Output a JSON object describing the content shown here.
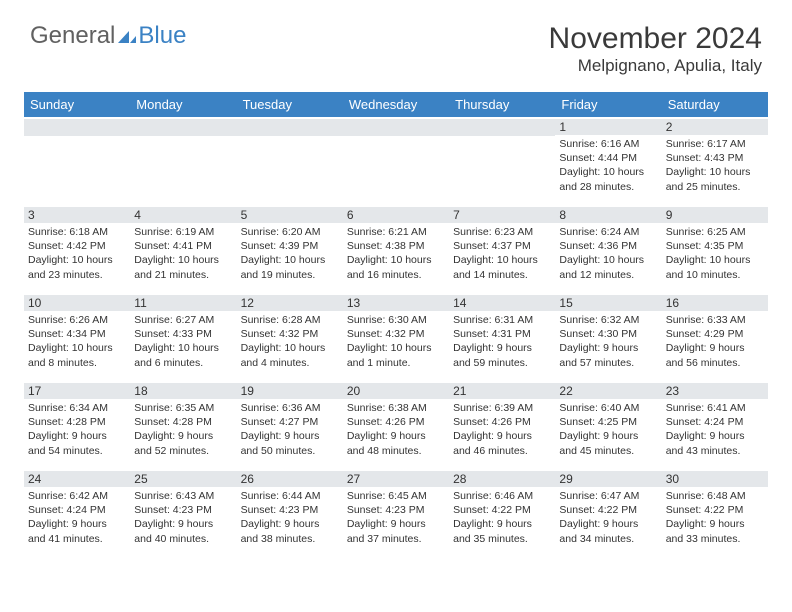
{
  "logo": {
    "text1": "General",
    "text2": "Blue",
    "icon_color": "#3b82c4"
  },
  "title": "November 2024",
  "location": "Melpignano, Apulia, Italy",
  "colors": {
    "header_bg": "#3b82c4",
    "daynum_bg": "#e4e7ea",
    "text": "#333333"
  },
  "day_headers": [
    "Sunday",
    "Monday",
    "Tuesday",
    "Wednesday",
    "Thursday",
    "Friday",
    "Saturday"
  ],
  "weeks": [
    [
      {
        "n": "",
        "sunrise": "",
        "sunset": "",
        "daylight1": "",
        "daylight2": ""
      },
      {
        "n": "",
        "sunrise": "",
        "sunset": "",
        "daylight1": "",
        "daylight2": ""
      },
      {
        "n": "",
        "sunrise": "",
        "sunset": "",
        "daylight1": "",
        "daylight2": ""
      },
      {
        "n": "",
        "sunrise": "",
        "sunset": "",
        "daylight1": "",
        "daylight2": ""
      },
      {
        "n": "",
        "sunrise": "",
        "sunset": "",
        "daylight1": "",
        "daylight2": ""
      },
      {
        "n": "1",
        "sunrise": "Sunrise: 6:16 AM",
        "sunset": "Sunset: 4:44 PM",
        "daylight1": "Daylight: 10 hours",
        "daylight2": "and 28 minutes."
      },
      {
        "n": "2",
        "sunrise": "Sunrise: 6:17 AM",
        "sunset": "Sunset: 4:43 PM",
        "daylight1": "Daylight: 10 hours",
        "daylight2": "and 25 minutes."
      }
    ],
    [
      {
        "n": "3",
        "sunrise": "Sunrise: 6:18 AM",
        "sunset": "Sunset: 4:42 PM",
        "daylight1": "Daylight: 10 hours",
        "daylight2": "and 23 minutes."
      },
      {
        "n": "4",
        "sunrise": "Sunrise: 6:19 AM",
        "sunset": "Sunset: 4:41 PM",
        "daylight1": "Daylight: 10 hours",
        "daylight2": "and 21 minutes."
      },
      {
        "n": "5",
        "sunrise": "Sunrise: 6:20 AM",
        "sunset": "Sunset: 4:39 PM",
        "daylight1": "Daylight: 10 hours",
        "daylight2": "and 19 minutes."
      },
      {
        "n": "6",
        "sunrise": "Sunrise: 6:21 AM",
        "sunset": "Sunset: 4:38 PM",
        "daylight1": "Daylight: 10 hours",
        "daylight2": "and 16 minutes."
      },
      {
        "n": "7",
        "sunrise": "Sunrise: 6:23 AM",
        "sunset": "Sunset: 4:37 PM",
        "daylight1": "Daylight: 10 hours",
        "daylight2": "and 14 minutes."
      },
      {
        "n": "8",
        "sunrise": "Sunrise: 6:24 AM",
        "sunset": "Sunset: 4:36 PM",
        "daylight1": "Daylight: 10 hours",
        "daylight2": "and 12 minutes."
      },
      {
        "n": "9",
        "sunrise": "Sunrise: 6:25 AM",
        "sunset": "Sunset: 4:35 PM",
        "daylight1": "Daylight: 10 hours",
        "daylight2": "and 10 minutes."
      }
    ],
    [
      {
        "n": "10",
        "sunrise": "Sunrise: 6:26 AM",
        "sunset": "Sunset: 4:34 PM",
        "daylight1": "Daylight: 10 hours",
        "daylight2": "and 8 minutes."
      },
      {
        "n": "11",
        "sunrise": "Sunrise: 6:27 AM",
        "sunset": "Sunset: 4:33 PM",
        "daylight1": "Daylight: 10 hours",
        "daylight2": "and 6 minutes."
      },
      {
        "n": "12",
        "sunrise": "Sunrise: 6:28 AM",
        "sunset": "Sunset: 4:32 PM",
        "daylight1": "Daylight: 10 hours",
        "daylight2": "and 4 minutes."
      },
      {
        "n": "13",
        "sunrise": "Sunrise: 6:30 AM",
        "sunset": "Sunset: 4:32 PM",
        "daylight1": "Daylight: 10 hours",
        "daylight2": "and 1 minute."
      },
      {
        "n": "14",
        "sunrise": "Sunrise: 6:31 AM",
        "sunset": "Sunset: 4:31 PM",
        "daylight1": "Daylight: 9 hours",
        "daylight2": "and 59 minutes."
      },
      {
        "n": "15",
        "sunrise": "Sunrise: 6:32 AM",
        "sunset": "Sunset: 4:30 PM",
        "daylight1": "Daylight: 9 hours",
        "daylight2": "and 57 minutes."
      },
      {
        "n": "16",
        "sunrise": "Sunrise: 6:33 AM",
        "sunset": "Sunset: 4:29 PM",
        "daylight1": "Daylight: 9 hours",
        "daylight2": "and 56 minutes."
      }
    ],
    [
      {
        "n": "17",
        "sunrise": "Sunrise: 6:34 AM",
        "sunset": "Sunset: 4:28 PM",
        "daylight1": "Daylight: 9 hours",
        "daylight2": "and 54 minutes."
      },
      {
        "n": "18",
        "sunrise": "Sunrise: 6:35 AM",
        "sunset": "Sunset: 4:28 PM",
        "daylight1": "Daylight: 9 hours",
        "daylight2": "and 52 minutes."
      },
      {
        "n": "19",
        "sunrise": "Sunrise: 6:36 AM",
        "sunset": "Sunset: 4:27 PM",
        "daylight1": "Daylight: 9 hours",
        "daylight2": "and 50 minutes."
      },
      {
        "n": "20",
        "sunrise": "Sunrise: 6:38 AM",
        "sunset": "Sunset: 4:26 PM",
        "daylight1": "Daylight: 9 hours",
        "daylight2": "and 48 minutes."
      },
      {
        "n": "21",
        "sunrise": "Sunrise: 6:39 AM",
        "sunset": "Sunset: 4:26 PM",
        "daylight1": "Daylight: 9 hours",
        "daylight2": "and 46 minutes."
      },
      {
        "n": "22",
        "sunrise": "Sunrise: 6:40 AM",
        "sunset": "Sunset: 4:25 PM",
        "daylight1": "Daylight: 9 hours",
        "daylight2": "and 45 minutes."
      },
      {
        "n": "23",
        "sunrise": "Sunrise: 6:41 AM",
        "sunset": "Sunset: 4:24 PM",
        "daylight1": "Daylight: 9 hours",
        "daylight2": "and 43 minutes."
      }
    ],
    [
      {
        "n": "24",
        "sunrise": "Sunrise: 6:42 AM",
        "sunset": "Sunset: 4:24 PM",
        "daylight1": "Daylight: 9 hours",
        "daylight2": "and 41 minutes."
      },
      {
        "n": "25",
        "sunrise": "Sunrise: 6:43 AM",
        "sunset": "Sunset: 4:23 PM",
        "daylight1": "Daylight: 9 hours",
        "daylight2": "and 40 minutes."
      },
      {
        "n": "26",
        "sunrise": "Sunrise: 6:44 AM",
        "sunset": "Sunset: 4:23 PM",
        "daylight1": "Daylight: 9 hours",
        "daylight2": "and 38 minutes."
      },
      {
        "n": "27",
        "sunrise": "Sunrise: 6:45 AM",
        "sunset": "Sunset: 4:23 PM",
        "daylight1": "Daylight: 9 hours",
        "daylight2": "and 37 minutes."
      },
      {
        "n": "28",
        "sunrise": "Sunrise: 6:46 AM",
        "sunset": "Sunset: 4:22 PM",
        "daylight1": "Daylight: 9 hours",
        "daylight2": "and 35 minutes."
      },
      {
        "n": "29",
        "sunrise": "Sunrise: 6:47 AM",
        "sunset": "Sunset: 4:22 PM",
        "daylight1": "Daylight: 9 hours",
        "daylight2": "and 34 minutes."
      },
      {
        "n": "30",
        "sunrise": "Sunrise: 6:48 AM",
        "sunset": "Sunset: 4:22 PM",
        "daylight1": "Daylight: 9 hours",
        "daylight2": "and 33 minutes."
      }
    ]
  ]
}
